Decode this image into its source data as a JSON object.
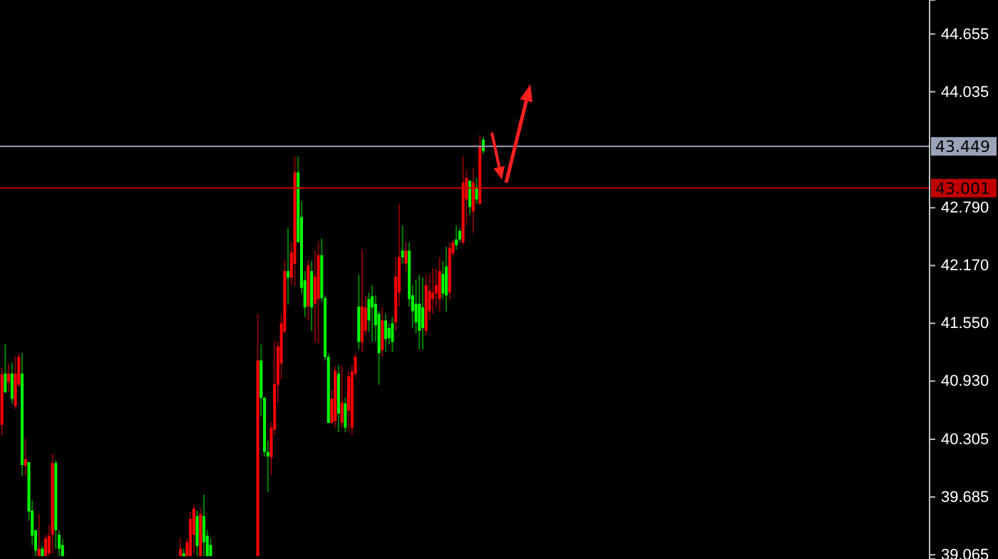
{
  "chart_data": {
    "type": "candlestick",
    "categories": [
      null,
      null,
      null,
      null,
      null,
      null,
      null,
      null,
      null,
      null,
      null,
      null,
      null,
      null,
      null,
      null,
      null,
      null,
      null,
      null,
      null,
      null,
      null,
      null,
      null,
      null,
      null,
      null,
      null,
      null,
      null,
      null,
      null,
      null,
      null,
      null,
      null,
      null,
      null,
      null,
      null,
      null,
      null,
      null,
      null,
      null,
      null,
      null,
      null,
      null,
      null,
      null,
      null,
      null,
      null,
      null,
      null,
      null,
      null,
      null,
      null,
      null,
      null,
      null,
      null,
      null,
      null,
      null,
      null,
      null,
      null,
      null,
      null,
      null,
      null,
      null,
      null,
      null,
      null,
      null,
      null,
      null,
      null,
      null,
      null,
      null,
      null,
      null,
      null,
      null,
      null,
      null,
      null,
      null,
      null,
      null,
      null,
      null,
      null,
      null,
      null,
      null,
      null,
      null,
      null,
      null,
      null,
      null,
      null,
      null,
      null,
      null,
      null,
      null,
      null,
      null,
      null,
      null,
      null,
      null,
      null,
      null,
      null,
      null,
      null,
      null,
      null,
      null,
      null,
      null,
      null,
      null,
      null,
      null,
      null,
      null,
      null,
      null,
      null,
      null,
      null,
      null,
      null,
      null,
      null,
      null,
      null,
      null,
      null,
      null,
      null,
      null,
      null,
      null,
      null,
      null,
      null,
      null,
      null,
      null,
      null,
      null,
      null,
      null,
      null,
      null,
      null,
      null,
      null,
      null,
      null,
      null,
      null,
      null,
      null,
      null,
      null,
      null,
      null,
      null,
      null,
      null,
      null,
      null,
      null,
      null,
      null,
      null,
      null,
      null,
      null,
      null,
      null,
      null,
      null,
      null,
      null,
      null,
      null,
      null,
      null,
      null,
      null,
      null,
      null,
      null,
      null,
      null,
      null,
      null,
      null,
      null,
      null,
      null,
      null,
      null,
      null,
      null,
      null,
      null,
      null,
      null,
      null,
      null,
      null,
      null,
      null,
      null,
      null,
      null,
      null,
      null,
      null,
      null,
      null,
      null,
      null,
      null,
      null,
      null,
      null,
      null,
      null,
      null,
      null,
      null,
      null,
      null,
      null,
      null,
      null,
      null,
      null,
      null,
      null,
      null,
      null,
      null,
      null,
      null,
      null,
      null,
      null,
      null,
      null,
      null,
      null,
      null,
      null,
      null,
      null,
      null,
      null,
      null,
      null,
      null
    ],
    "ohlc": [
      [
        40.46,
        41.07,
        40.35,
        41.0
      ],
      [
        41.01,
        41.33,
        40.8,
        40.81
      ],
      [
        40.92,
        41.12,
        40.81,
        41.01
      ],
      [
        41.01,
        41.13,
        40.69,
        40.74
      ],
      [
        40.66,
        41.19,
        40.63,
        41.01
      ],
      [
        40.89,
        41.23,
        40.87,
        41.19
      ],
      [
        41.01,
        41.23,
        39.91,
        40.03
      ],
      [
        40.02,
        40.31,
        39.91,
        40.09
      ],
      [
        40.06,
        40.06,
        39.43,
        39.53
      ],
      [
        39.54,
        39.65,
        39.17,
        39.27
      ],
      [
        39.33,
        39.33,
        39.05,
        39.11
      ],
      [
        39.05,
        39.51,
        39.05,
        39.13
      ],
      [
        39.13,
        39.16,
        39.05,
        39.05
      ],
      [
        39.05,
        39.28,
        39.05,
        39.24
      ],
      [
        39.08,
        39.39,
        39.05,
        39.27
      ],
      [
        39.28,
        40.15,
        39.08,
        40.05
      ],
      [
        40.05,
        40.08,
        39.13,
        39.33
      ],
      [
        39.28,
        39.33,
        39.05,
        39.13
      ],
      [
        39.17,
        39.24,
        39.05,
        39.05
      ],
      null,
      null,
      null,
      null,
      null,
      null,
      null,
      null,
      null,
      null,
      null,
      null,
      null,
      null,
      null,
      null,
      null,
      null,
      null,
      null,
      null,
      null,
      null,
      null,
      null,
      null,
      null,
      null,
      null,
      null,
      null,
      null,
      null,
      null,
      [
        39.05,
        39.24,
        39.05,
        39.13
      ],
      [
        39.08,
        39.13,
        39.05,
        39.05
      ],
      [
        39.05,
        39.24,
        39.05,
        39.2
      ],
      [
        39.05,
        39.53,
        39.05,
        39.45
      ],
      [
        39.28,
        39.6,
        39.08,
        39.56
      ],
      [
        39.48,
        39.54,
        39.05,
        39.16
      ],
      [
        39.05,
        39.56,
        39.05,
        39.5
      ],
      [
        39.48,
        39.71,
        39.05,
        39.2
      ],
      [
        39.27,
        39.33,
        39.05,
        39.05
      ],
      [
        39.17,
        39.24,
        39.05,
        39.05
      ],
      null,
      null,
      null,
      null,
      null,
      null,
      null,
      null,
      null,
      null,
      null,
      null,
      null,
      [
        39.05,
        41.65,
        39.05,
        41.15
      ],
      [
        41.15,
        41.32,
        40.55,
        40.75
      ],
      [
        40.75,
        40.76,
        40.12,
        40.17
      ],
      [
        40.17,
        40.29,
        39.74,
        40.12
      ],
      [
        40.11,
        40.49,
        39.92,
        40.43
      ],
      [
        40.41,
        41.36,
        40.35,
        40.9
      ],
      [
        40.89,
        41.35,
        40.7,
        41.3
      ],
      [
        41.12,
        41.64,
        40.95,
        41.55
      ],
      [
        41.46,
        42.23,
        41.44,
        42.11
      ],
      [
        42.11,
        42.57,
        41.75,
        42.04
      ],
      [
        42.04,
        42.42,
        41.96,
        42.31
      ],
      [
        42.19,
        43.34,
        41.95,
        43.17
      ],
      [
        43.17,
        43.34,
        42.42,
        42.42
      ],
      [
        42.69,
        42.86,
        41.87,
        41.93
      ],
      [
        42.01,
        42.11,
        41.62,
        41.72
      ],
      [
        41.73,
        42.23,
        41.58,
        42.17
      ],
      [
        42.11,
        42.22,
        41.47,
        41.72
      ],
      [
        41.76,
        42.33,
        41.35,
        42.05
      ],
      [
        41.81,
        42.43,
        41.33,
        42.28
      ],
      [
        42.28,
        42.46,
        41.78,
        41.82
      ],
      [
        41.82,
        41.85,
        41.15,
        41.19
      ],
      [
        41.19,
        41.23,
        40.48,
        40.48
      ],
      [
        40.48,
        40.84,
        40.48,
        40.74
      ],
      [
        40.5,
        41.09,
        40.43,
        41.04
      ],
      [
        41.01,
        41.1,
        40.38,
        40.58
      ],
      [
        40.48,
        41.09,
        40.43,
        40.7
      ],
      [
        40.69,
        40.75,
        40.38,
        40.43
      ],
      [
        40.61,
        41.04,
        40.4,
        40.98
      ],
      [
        40.43,
        41.1,
        40.35,
        41.03
      ],
      [
        41.01,
        41.23,
        40.97,
        41.19
      ],
      [
        41.73,
        42.07,
        41.27,
        41.35
      ],
      [
        41.35,
        42.34,
        41.24,
        41.73
      ],
      [
        41.47,
        41.84,
        41.42,
        41.72
      ],
      [
        41.81,
        41.88,
        41.46,
        41.58
      ],
      [
        41.84,
        41.96,
        41.35,
        41.72
      ],
      [
        41.76,
        41.85,
        41.35,
        41.53
      ],
      [
        41.65,
        41.68,
        40.89,
        41.23
      ],
      [
        41.26,
        41.72,
        41.19,
        41.58
      ],
      [
        41.58,
        41.65,
        41.24,
        41.38
      ],
      [
        41.5,
        41.55,
        41.32,
        41.39
      ],
      [
        41.55,
        41.62,
        41.24,
        41.35
      ],
      [
        41.56,
        42.26,
        41.47,
        42.05
      ],
      [
        41.88,
        42.83,
        41.73,
        42.26
      ],
      [
        42.33,
        42.6,
        42.19,
        42.26
      ],
      [
        42.19,
        42.42,
        42.11,
        42.33
      ],
      [
        42.33,
        42.42,
        41.73,
        41.81
      ],
      [
        41.85,
        41.96,
        41.5,
        41.68
      ],
      [
        41.76,
        42.02,
        41.44,
        41.56
      ],
      [
        41.76,
        42.07,
        41.27,
        41.47
      ],
      [
        41.72,
        42.04,
        41.27,
        41.5
      ],
      [
        41.47,
        42.07,
        41.42,
        41.96
      ],
      [
        41.68,
        42.08,
        41.58,
        41.9
      ],
      [
        41.81,
        42.14,
        41.65,
        41.88
      ],
      [
        41.87,
        42.14,
        41.73,
        41.96
      ],
      [
        41.81,
        42.26,
        41.68,
        42.11
      ],
      [
        42.08,
        42.22,
        41.81,
        41.87
      ],
      [
        42.16,
        42.37,
        41.68,
        41.85
      ],
      [
        41.88,
        42.42,
        41.81,
        42.36
      ],
      [
        42.3,
        42.45,
        42.26,
        42.42
      ],
      [
        42.45,
        42.6,
        42.34,
        42.39
      ],
      [
        42.54,
        42.57,
        42.42,
        42.45
      ],
      [
        42.42,
        43.34,
        42.39,
        43.06
      ],
      [
        42.88,
        43.19,
        42.6,
        43.11
      ],
      [
        43.08,
        43.08,
        42.72,
        42.8
      ],
      [
        42.75,
        43.22,
        42.52,
        43.06
      ],
      [
        43.01,
        43.11,
        42.83,
        42.88
      ],
      [
        42.83,
        43.57,
        42.83,
        43.45
      ],
      [
        43.52,
        43.55,
        43.37,
        43.4
      ],
      null,
      null,
      null,
      null,
      null,
      null,
      null,
      null,
      null,
      null,
      null,
      null,
      null,
      null,
      null,
      null,
      null,
      null,
      null,
      null,
      null,
      null,
      null,
      null,
      null,
      null,
      null,
      null,
      null,
      null,
      null,
      null,
      null,
      null,
      null,
      null,
      null,
      null,
      null,
      null,
      null,
      null,
      null,
      null,
      null,
      null,
      null,
      null,
      null,
      null,
      null,
      null,
      null,
      null,
      null,
      null,
      null,
      null,
      null,
      null,
      null,
      null,
      null,
      null,
      null,
      null,
      null,
      null,
      null,
      null,
      null,
      null,
      null,
      null,
      null,
      null,
      null,
      null,
      null,
      null,
      null,
      null,
      null,
      null,
      null,
      null,
      null,
      null,
      null,
      null,
      null,
      null,
      null,
      null,
      null,
      null,
      null,
      null,
      null,
      null,
      null,
      null,
      null,
      null,
      null,
      null,
      null,
      null,
      null,
      null,
      null,
      null,
      null,
      null,
      null,
      null,
      null,
      null,
      null,
      null,
      null,
      null,
      null,
      null,
      null,
      null,
      null,
      null,
      null,
      null,
      null,
      null
    ],
    "colors": [
      "#ff0000",
      "#00ff00",
      "#ff0000",
      "#00ff00",
      "#ff0000",
      "#ff0000",
      "#00ff00",
      "#ff0000",
      "#00ff00",
      "#00ff00",
      "#00ff00",
      "#ff0000",
      "#00ff00",
      "#ff0000",
      "#ff0000",
      "#ff0000",
      "#00ff00",
      "#00ff00",
      "#00ff00",
      null,
      null,
      null,
      null,
      null,
      null,
      null,
      null,
      null,
      null,
      null,
      null,
      null,
      null,
      null,
      null,
      null,
      null,
      null,
      null,
      null,
      null,
      null,
      null,
      null,
      null,
      null,
      null,
      null,
      null,
      null,
      null,
      null,
      null,
      "#ff0000",
      "#00ff00",
      "#ff0000",
      "#ff0000",
      "#ff0000",
      "#00ff00",
      "#ff0000",
      "#00ff00",
      "#00ff00",
      "#00ff00",
      null,
      null,
      null,
      null,
      null,
      null,
      null,
      null,
      null,
      null,
      null,
      null,
      null,
      "#ff0000",
      "#00ff00",
      "#00ff00",
      "#00ff00",
      "#ff0000",
      "#ff0000",
      "#ff0000",
      "#ff0000",
      "#ff0000",
      "#00ff00",
      "#ff0000",
      "#ff0000",
      "#00ff00",
      "#00ff00",
      "#00ff00",
      "#ff0000",
      "#00ff00",
      "#ff0000",
      "#ff0000",
      "#00ff00",
      "#00ff00",
      "#00ff00",
      "#ff0000",
      "#ff0000",
      "#00ff00",
      "#ff0000",
      "#00ff00",
      "#ff0000",
      "#ff0000",
      "#ff0000",
      "#00ff00",
      "#ff0000",
      "#ff0000",
      "#00ff00",
      "#00ff00",
      "#00ff00",
      "#00ff00",
      "#ff0000",
      "#00ff00",
      "#00ff00",
      "#00ff00",
      "#ff0000",
      "#ff0000",
      "#00ff00",
      "#ff0000",
      "#00ff00",
      "#00ff00",
      "#00ff00",
      "#00ff00",
      "#00ff00",
      "#ff0000",
      "#ff0000",
      "#ff0000",
      "#ff0000",
      "#ff0000",
      "#00ff00",
      "#00ff00",
      "#ff0000",
      "#ff0000",
      "#00ff00",
      "#00ff00",
      "#ff0000",
      "#ff0000",
      "#00ff00",
      "#ff0000",
      "#00ff00",
      "#ff0000",
      "#00ff00",
      null,
      null,
      null,
      null,
      null,
      null,
      null,
      null,
      null,
      null,
      null,
      null,
      null,
      null,
      null,
      null,
      null,
      null,
      null,
      null,
      null,
      null,
      null,
      null,
      null,
      null,
      null,
      null,
      null,
      null,
      null,
      null,
      null,
      null,
      null,
      null,
      null,
      null,
      null,
      null,
      null,
      null,
      null,
      null,
      null,
      null,
      null,
      null,
      null,
      null,
      null,
      null,
      null,
      null,
      null,
      null,
      null,
      null,
      null,
      null,
      null,
      null,
      null,
      null,
      null,
      null,
      null,
      null,
      null,
      null,
      null,
      null,
      null,
      null,
      null,
      null,
      null,
      null,
      null,
      null,
      null,
      null,
      null,
      null,
      null,
      null,
      null,
      null,
      null,
      null,
      null,
      null,
      null,
      null,
      null,
      null,
      null,
      null,
      null,
      null,
      null,
      null,
      null,
      null,
      null,
      null,
      null,
      null,
      null,
      null,
      null,
      null,
      null,
      null,
      null,
      null,
      null,
      null,
      null,
      null,
      null,
      null,
      null,
      null,
      null,
      null,
      null,
      null,
      null,
      null,
      null,
      null
    ],
    "ylim": [
      39.02,
      45.02
    ],
    "yticks": [
      39.065,
      39.685,
      40.305,
      {
        "value": 40.93,
        "label": "40.930"
      },
      {
        "value": 41.55,
        "label": "41.550"
      },
      {
        "value": 42.17,
        "label": "42.170"
      },
      {
        "value": 42.79,
        "label": "42.790"
      },
      44.035,
      44.655
    ],
    "tick_labels": "y",
    "grid": false,
    "ref_lines": [
      {
        "axis": "y",
        "value": 43.449,
        "label": "43.449",
        "color": "#9aa3b8"
      },
      {
        "axis": "y",
        "value": 43.001,
        "label": "43.001",
        "color": "#c00000"
      }
    ]
  }
}
